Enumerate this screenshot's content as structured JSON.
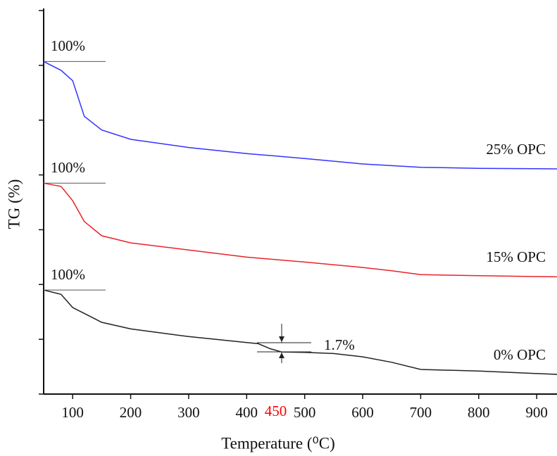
{
  "chart_data": {
    "type": "line",
    "xlabel": "Temperature (⁰C)",
    "ylabel": "TG (%)",
    "xlim": [
      50,
      935
    ],
    "xticks": [
      100,
      200,
      300,
      400,
      500,
      600,
      700,
      800,
      900
    ],
    "ylim": [
      0,
      7
    ],
    "yticks": [
      0,
      1,
      2,
      3,
      4,
      5,
      6,
      7
    ],
    "series": [
      {
        "name": "25% OPC",
        "color": "#3333ff",
        "start_label": "100%",
        "x": [
          50,
          80,
          100,
          120,
          150,
          200,
          300,
          400,
          500,
          600,
          700,
          800,
          935
        ],
        "values": [
          6.07,
          5.91,
          5.72,
          5.07,
          4.82,
          4.65,
          4.5,
          4.39,
          4.3,
          4.2,
          4.14,
          4.12,
          4.11
        ]
      },
      {
        "name": "15% OPC",
        "color": "#e8232a",
        "start_label": "100%",
        "x": [
          50,
          80,
          100,
          120,
          150,
          200,
          300,
          400,
          500,
          600,
          650,
          700,
          800,
          935
        ],
        "values": [
          3.85,
          3.79,
          3.53,
          3.15,
          2.89,
          2.76,
          2.63,
          2.5,
          2.41,
          2.31,
          2.25,
          2.18,
          2.16,
          2.14
        ]
      },
      {
        "name": "0% OPC",
        "color": "#222222",
        "start_label": "100%",
        "x": [
          50,
          80,
          100,
          150,
          200,
          300,
          400,
          420,
          440,
          460,
          500,
          550,
          600,
          650,
          700,
          800,
          935
        ],
        "values": [
          1.9,
          1.82,
          1.58,
          1.31,
          1.19,
          1.05,
          0.94,
          0.92,
          0.83,
          0.77,
          0.76,
          0.74,
          0.68,
          0.58,
          0.45,
          0.42,
          0.36
        ]
      }
    ],
    "annotations": [
      {
        "text": "1.7%"
      },
      {
        "value": 450,
        "color": "#ff0000"
      }
    ]
  }
}
